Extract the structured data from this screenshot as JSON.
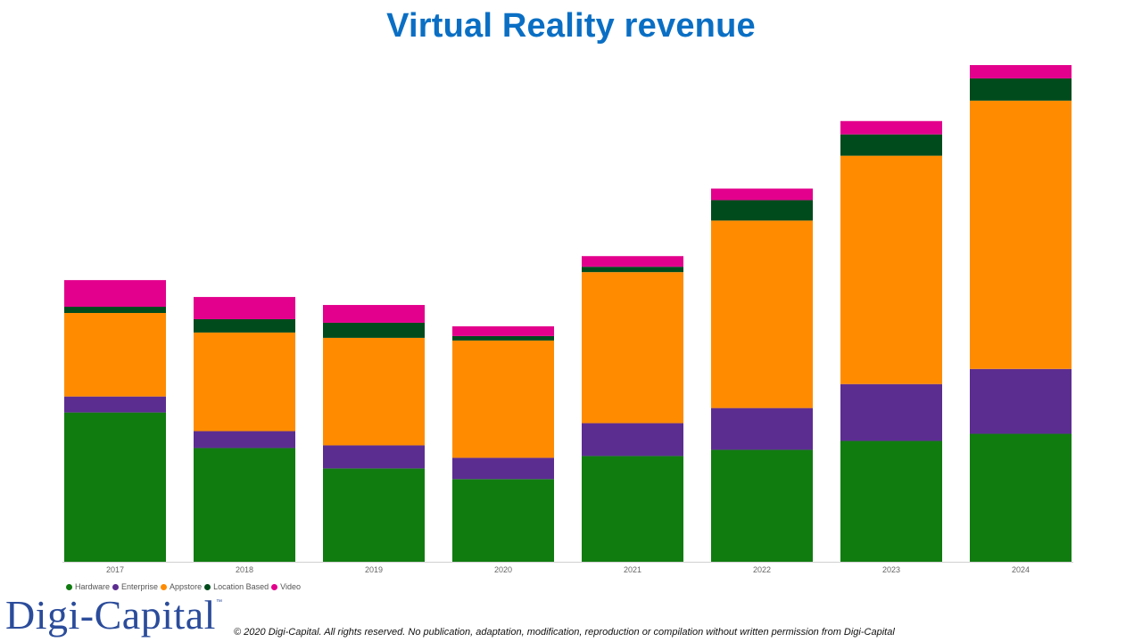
{
  "title": "Virtual Reality revenue",
  "chart_data": {
    "type": "bar",
    "stacked": true,
    "categories": [
      "2017",
      "2018",
      "2019",
      "2020",
      "2021",
      "2022",
      "2023",
      "2024"
    ],
    "series": [
      {
        "name": "Hardware",
        "color": "#107C10",
        "values": [
          168,
          128,
          105,
          93,
          119,
          126,
          136,
          144
        ]
      },
      {
        "name": "Enterprise",
        "color": "#5C2D91",
        "values": [
          18,
          19,
          26,
          24,
          37,
          47,
          64,
          73
        ]
      },
      {
        "name": "Appstore",
        "color": "#FF8C00",
        "values": [
          94,
          111,
          121,
          132,
          170,
          211,
          257,
          302
        ]
      },
      {
        "name": "Location Based",
        "color": "#004B1C",
        "values": [
          7,
          15,
          17,
          5,
          6,
          23,
          24,
          25
        ]
      },
      {
        "name": "Video",
        "color": "#E3008C",
        "values": [
          30,
          25,
          20,
          11,
          12,
          13,
          15,
          15
        ]
      }
    ],
    "ylim": [
      0,
      560
    ],
    "grid": false,
    "legend_position": "bottom-left"
  },
  "logo": {
    "text": "Digi-Capital",
    "tm": "™"
  },
  "copyright": "© 2020 Digi-Capital. All rights reserved. No publication, adaptation, modification, reproduction or compilation without written permission from Digi-Capital"
}
